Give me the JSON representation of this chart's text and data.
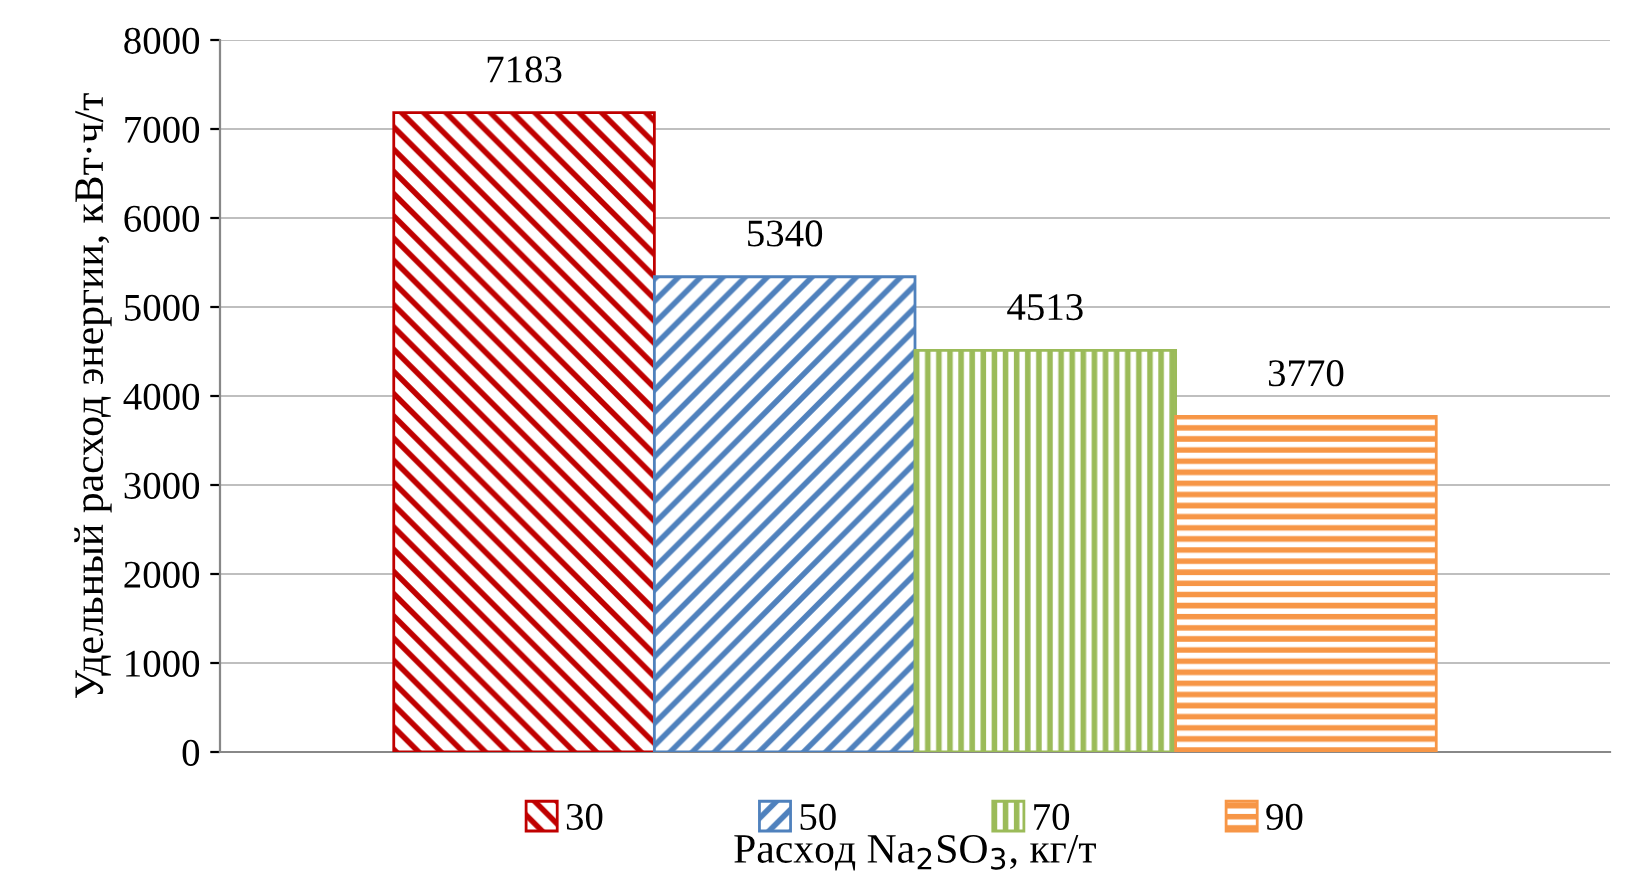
{
  "chart_data": {
    "type": "bar",
    "categories": [
      null
    ],
    "series": [
      {
        "name": "30",
        "color": "#c00000",
        "values": [
          7183
        ]
      },
      {
        "name": "50",
        "color": "#4f81bd",
        "values": [
          5340
        ]
      },
      {
        "name": "70",
        "color": "#9bbb59",
        "values": [
          4513
        ]
      },
      {
        "name": "90",
        "color": "#f79646",
        "values": [
          3770
        ]
      }
    ],
    "ylim": [
      0,
      8000
    ],
    "yticks": [
      0,
      1000,
      2000,
      3000,
      4000,
      5000,
      6000,
      7000,
      8000
    ],
    "grid": "y",
    "legend": "bottom",
    "data_labels": true,
    "xlabel": "Расход Na$_{2}$SO$_{3}$, кг/т",
    "ylabel": "Удельный расход энергии, кВт·ч/т"
  }
}
